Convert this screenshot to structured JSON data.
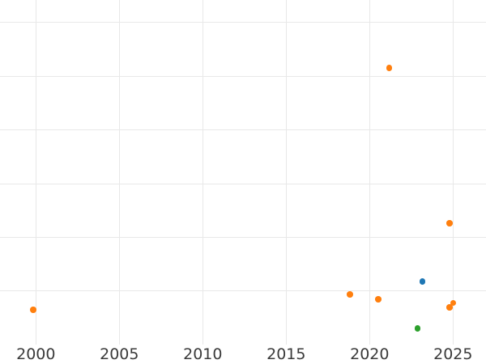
{
  "chart_data": {
    "type": "scatter",
    "title": "",
    "xlabel": "",
    "ylabel": "",
    "grid": true,
    "legend_position": "none",
    "x_tick_labels": [
      "2000",
      "2005",
      "2010",
      "2015",
      "2020",
      "2025"
    ],
    "x_tick_years": [
      2000,
      2005,
      2010,
      2015,
      2020,
      2025
    ],
    "x_visible_range": [
      1997.85,
      2026.97
    ],
    "y_axis_labels_visible": false,
    "y_gridline_fracs_from_bottom": [
      0.15,
      0.307,
      0.463,
      0.62,
      0.777,
      0.934
    ],
    "marker_diameter_px": 7.5,
    "plot_bg": "#ffffff",
    "gridline_color": "#e8e8e8",
    "tick_label_color": "#3a3a3a",
    "series": [
      {
        "name": "orange",
        "color": "#ff7f0e",
        "points": [
          {
            "x": 1999.83,
            "y_frac": 0.095
          },
          {
            "x": 2018.81,
            "y_frac": 0.14
          },
          {
            "x": 2020.52,
            "y_frac": 0.125
          },
          {
            "x": 2021.18,
            "y_frac": 0.801
          },
          {
            "x": 2024.79,
            "y_frac": 0.348
          },
          {
            "x": 2024.8,
            "y_frac": 0.102
          },
          {
            "x": 2025.0,
            "y_frac": 0.115
          }
        ]
      },
      {
        "name": "blue",
        "color": "#1f77b4",
        "points": [
          {
            "x": 2023.17,
            "y_frac": 0.177
          }
        ]
      },
      {
        "name": "green",
        "color": "#2ca02c",
        "points": [
          {
            "x": 2022.88,
            "y_frac": 0.04
          }
        ]
      }
    ]
  }
}
